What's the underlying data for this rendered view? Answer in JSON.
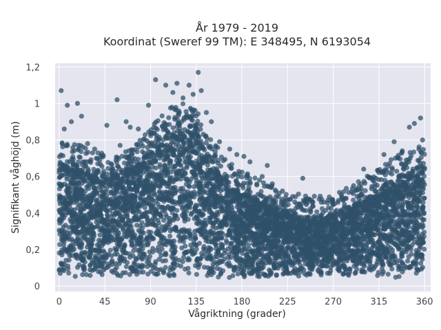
{
  "chart_data": {
    "type": "scatter",
    "title": "År 1979 - 2019",
    "subtitle": "Koordinat (Sweref 99 TM): E 348495, N 6193054",
    "xlabel": "Vågriktning (grader)",
    "ylabel": "Signifikant våghöjd (m)",
    "xlim": [
      -4,
      366
    ],
    "ylim": [
      -0.03,
      1.22
    ],
    "x_ticks": [
      0,
      45,
      90,
      135,
      180,
      225,
      270,
      315,
      360
    ],
    "x_tick_labels": [
      "0",
      "45",
      "90",
      "135",
      "180",
      "225",
      "270",
      "315",
      "360"
    ],
    "y_ticks": [
      0,
      0.2,
      0.4,
      0.6,
      0.8,
      1.0,
      1.2
    ],
    "y_tick_labels": [
      "0",
      "0,2",
      "0,4",
      "0,6",
      "0,8",
      "1",
      "1,2"
    ],
    "grid": true,
    "marker_color": "#2f5069",
    "background_color": "#e5e5ef",
    "envelope": {
      "x": [
        0,
        10,
        20,
        30,
        45,
        60,
        75,
        90,
        100,
        110,
        120,
        130,
        135,
        140,
        150,
        160,
        170,
        180,
        195,
        210,
        225,
        240,
        255,
        270,
        285,
        300,
        315,
        330,
        345,
        360
      ],
      "y_max": [
        0.66,
        0.68,
        0.66,
        0.62,
        0.61,
        0.63,
        0.66,
        0.74,
        0.82,
        0.86,
        0.88,
        0.87,
        0.85,
        0.8,
        0.7,
        0.6,
        0.55,
        0.51,
        0.47,
        0.43,
        0.4,
        0.38,
        0.37,
        0.39,
        0.43,
        0.47,
        0.52,
        0.59,
        0.64,
        0.65
      ],
      "y_min": 0.05
    },
    "outliers": [
      {
        "x": 2,
        "y": 1.07
      },
      {
        "x": 8,
        "y": 0.99
      },
      {
        "x": 18,
        "y": 1.0
      },
      {
        "x": 22,
        "y": 0.93
      },
      {
        "x": 5,
        "y": 0.86
      },
      {
        "x": 12,
        "y": 0.9
      },
      {
        "x": 28,
        "y": 0.78
      },
      {
        "x": 35,
        "y": 0.75
      },
      {
        "x": 47,
        "y": 0.88
      },
      {
        "x": 57,
        "y": 1.02
      },
      {
        "x": 66,
        "y": 0.9
      },
      {
        "x": 70,
        "y": 0.87
      },
      {
        "x": 78,
        "y": 0.86
      },
      {
        "x": 88,
        "y": 0.99
      },
      {
        "x": 95,
        "y": 1.13
      },
      {
        "x": 105,
        "y": 1.1
      },
      {
        "x": 112,
        "y": 1.06
      },
      {
        "x": 116,
        "y": 1.11
      },
      {
        "x": 122,
        "y": 1.03
      },
      {
        "x": 128,
        "y": 1.1
      },
      {
        "x": 132,
        "y": 1.05
      },
      {
        "x": 137,
        "y": 1.17
      },
      {
        "x": 140,
        "y": 1.07
      },
      {
        "x": 145,
        "y": 0.95
      },
      {
        "x": 150,
        "y": 0.9
      },
      {
        "x": 158,
        "y": 0.79
      },
      {
        "x": 168,
        "y": 0.75
      },
      {
        "x": 175,
        "y": 0.72
      },
      {
        "x": 182,
        "y": 0.71
      },
      {
        "x": 188,
        "y": 0.68
      },
      {
        "x": 200,
        "y": 0.6
      },
      {
        "x": 205,
        "y": 0.66
      },
      {
        "x": 210,
        "y": 0.56
      },
      {
        "x": 220,
        "y": 0.52
      },
      {
        "x": 230,
        "y": 0.49
      },
      {
        "x": 240,
        "y": 0.59
      },
      {
        "x": 250,
        "y": 0.46
      },
      {
        "x": 265,
        "y": 0.47
      },
      {
        "x": 278,
        "y": 0.5
      },
      {
        "x": 290,
        "y": 0.55
      },
      {
        "x": 300,
        "y": 0.64
      },
      {
        "x": 312,
        "y": 0.59
      },
      {
        "x": 320,
        "y": 0.72
      },
      {
        "x": 330,
        "y": 0.79
      },
      {
        "x": 338,
        "y": 0.74
      },
      {
        "x": 345,
        "y": 0.87
      },
      {
        "x": 350,
        "y": 0.89
      },
      {
        "x": 356,
        "y": 0.92
      },
      {
        "x": 358,
        "y": 0.8
      },
      {
        "x": 342,
        "y": 0.69
      },
      {
        "x": 60,
        "y": 0.77
      },
      {
        "x": 40,
        "y": 0.69
      }
    ]
  }
}
